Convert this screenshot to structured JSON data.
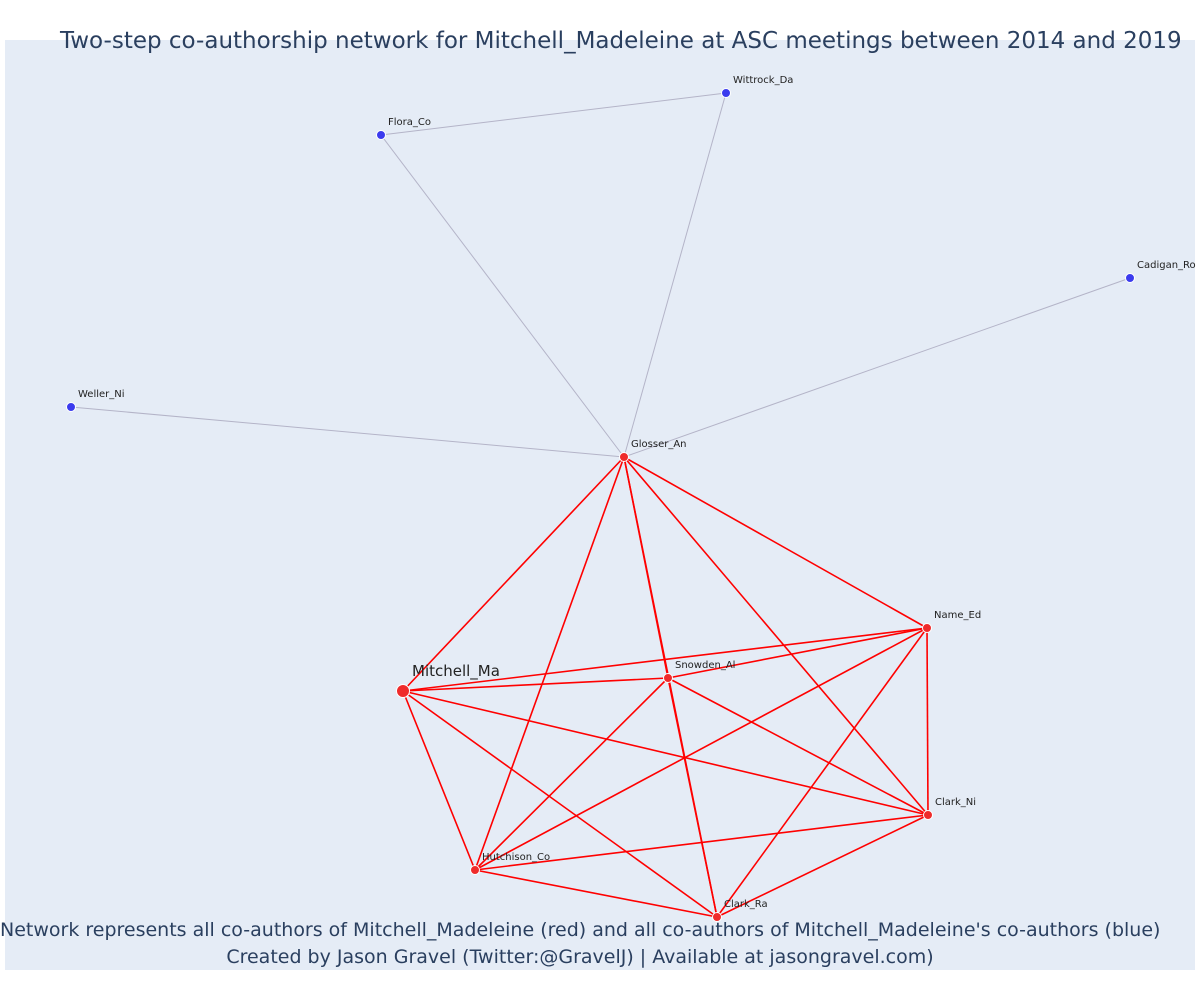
{
  "title": "Two-step co-authorship network for Mitchell_Madeleine at ASC meetings between 2014 and 2019",
  "caption": {
    "line1": "Network represents all co-authors of Mitchell_Madeleine (red) and all co-authors of Mitchell_Madeleine's co-authors (blue)",
    "line2": "Created by Jason Gravel (Twitter:@GravelJ) | Available at jasongravel.com)"
  },
  "colors": {
    "primary_node": "#ef2b2b",
    "primary_edge": "#ff0000",
    "secondary_node": "#3b3bee",
    "secondary_edge": "#b4b4c8",
    "background": "#e5ecf6"
  },
  "nodes": [
    {
      "id": "Mitchell_Ma",
      "group": "ego"
    },
    {
      "id": "Glosser_An",
      "group": "coauthor"
    },
    {
      "id": "Snowden_Al",
      "group": "coauthor"
    },
    {
      "id": "Name_Ed",
      "group": "coauthor"
    },
    {
      "id": "Clark_Ni",
      "group": "coauthor"
    },
    {
      "id": "Hutchison_Co",
      "group": "coauthor"
    },
    {
      "id": "Clark_Ra",
      "group": "coauthor"
    },
    {
      "id": "Wittrock_Da",
      "group": "second_step"
    },
    {
      "id": "Flora_Co",
      "group": "second_step"
    },
    {
      "id": "Cadigan_Ro",
      "group": "second_step"
    },
    {
      "id": "Weller_Ni",
      "group": "second_step"
    }
  ],
  "edges": [
    [
      "Mitchell_Ma",
      "Glosser_An"
    ],
    [
      "Mitchell_Ma",
      "Snowden_Al"
    ],
    [
      "Mitchell_Ma",
      "Name_Ed"
    ],
    [
      "Mitchell_Ma",
      "Clark_Ni"
    ],
    [
      "Mitchell_Ma",
      "Hutchison_Co"
    ],
    [
      "Mitchell_Ma",
      "Clark_Ra"
    ],
    [
      "Glosser_An",
      "Snowden_Al"
    ],
    [
      "Glosser_An",
      "Name_Ed"
    ],
    [
      "Glosser_An",
      "Clark_Ni"
    ],
    [
      "Glosser_An",
      "Hutchison_Co"
    ],
    [
      "Glosser_An",
      "Clark_Ra"
    ],
    [
      "Snowden_Al",
      "Name_Ed"
    ],
    [
      "Snowden_Al",
      "Clark_Ni"
    ],
    [
      "Snowden_Al",
      "Hutchison_Co"
    ],
    [
      "Snowden_Al",
      "Clark_Ra"
    ],
    [
      "Name_Ed",
      "Clark_Ni"
    ],
    [
      "Name_Ed",
      "Hutchison_Co"
    ],
    [
      "Name_Ed",
      "Clark_Ra"
    ],
    [
      "Clark_Ni",
      "Hutchison_Co"
    ],
    [
      "Clark_Ni",
      "Clark_Ra"
    ],
    [
      "Hutchison_Co",
      "Clark_Ra"
    ],
    [
      "Glosser_An",
      "Wittrock_Da"
    ],
    [
      "Glosser_An",
      "Flora_Co"
    ],
    [
      "Glosser_An",
      "Cadigan_Ro"
    ],
    [
      "Glosser_An",
      "Weller_Ni"
    ],
    [
      "Flora_Co",
      "Wittrock_Da"
    ]
  ]
}
